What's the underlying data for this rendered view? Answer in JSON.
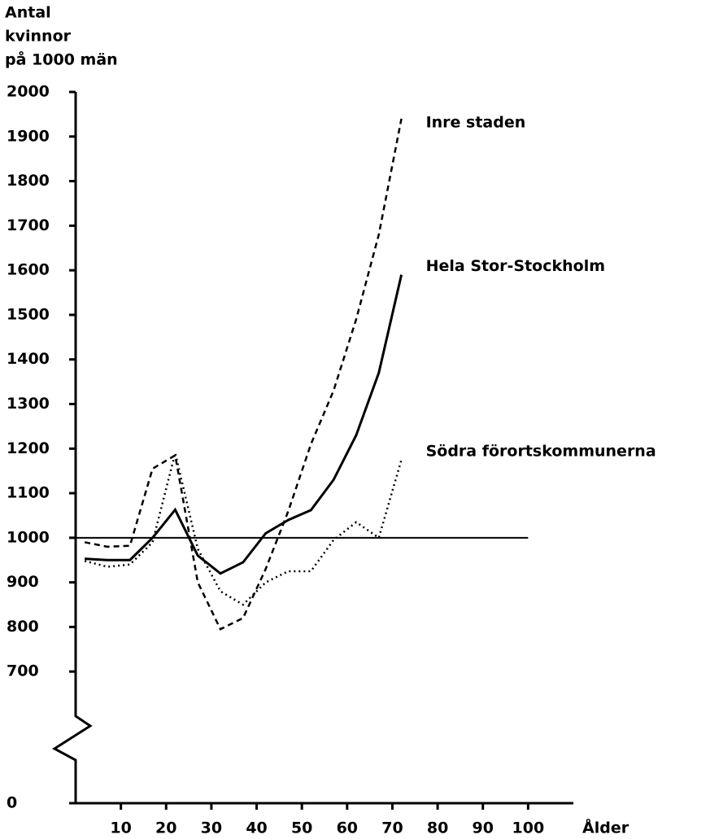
{
  "chart_data": {
    "type": "line",
    "ylabel": [
      "Antal",
      "kvinnor",
      "på 1000 män"
    ],
    "xlabel": "Ålder",
    "xlim": [
      0,
      110
    ],
    "xticks": [
      10,
      20,
      30,
      40,
      50,
      60,
      70,
      80,
      90,
      100
    ],
    "ylim": [
      600,
      2000
    ],
    "yticks": [
      0,
      700,
      800,
      900,
      1000,
      1100,
      1200,
      1300,
      1400,
      1500,
      1600,
      1700,
      1800,
      1900,
      2000
    ],
    "axis_break": true,
    "reference_line": 1000,
    "x": [
      2,
      7,
      12,
      17,
      22,
      27,
      32,
      37,
      42,
      47,
      52,
      57,
      62,
      67,
      72
    ],
    "series": [
      {
        "name": "Inre staden",
        "color": "#000",
        "style": "dashed",
        "values": [
          990,
          980,
          982,
          1155,
          1185,
          900,
          795,
          820,
          930,
          1060,
          1210,
          1330,
          1490,
          1680,
          1940
        ]
      },
      {
        "name": "Hela Stor-Stockholm",
        "color": "#000",
        "style": "solid",
        "values": [
          953,
          950,
          950,
          1000,
          1063,
          960,
          920,
          945,
          1010,
          1040,
          1062,
          1130,
          1230,
          1370,
          1590
        ]
      },
      {
        "name": "Södra förortskommunerna",
        "color": "#000",
        "style": "dotted",
        "values": [
          948,
          935,
          940,
          990,
          1190,
          975,
          880,
          850,
          900,
          925,
          925,
          995,
          1035,
          1000,
          1175
        ]
      }
    ]
  }
}
